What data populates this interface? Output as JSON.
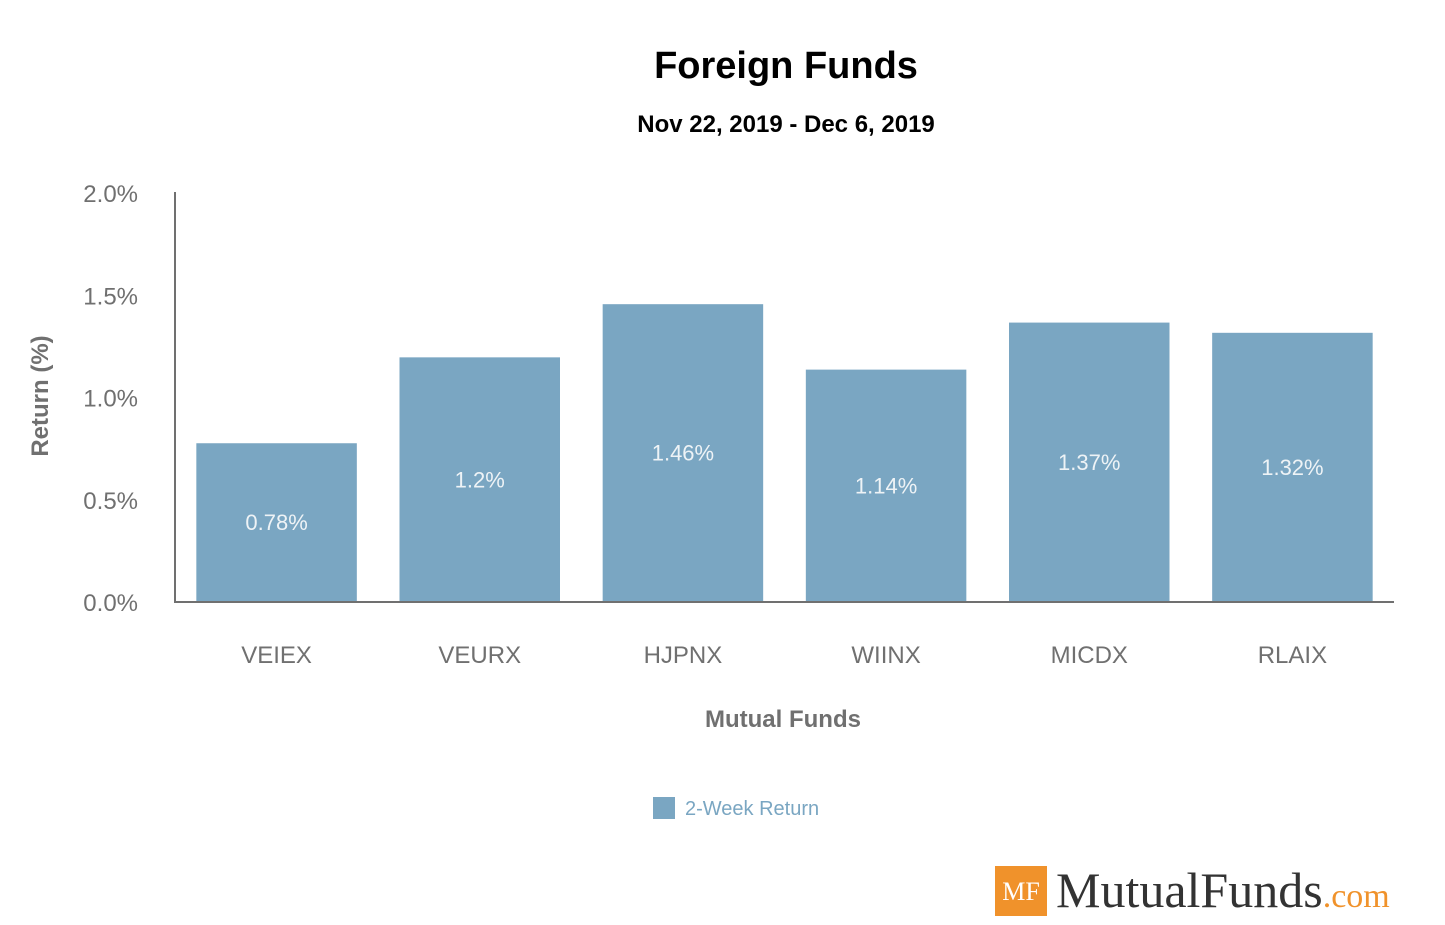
{
  "chart_data": {
    "type": "bar",
    "title": "Foreign Funds",
    "subtitle": "Nov 22, 2019 - Dec 6, 2019",
    "xlabel": "Mutual Funds",
    "ylabel": "Return (%)",
    "categories": [
      "VEIEX",
      "VEURX",
      "HJPNX",
      "WIINX",
      "MICDX",
      "RLAIX"
    ],
    "series": [
      {
        "name": "2-Week Return",
        "values": [
          0.78,
          1.2,
          1.46,
          1.14,
          1.37,
          1.32
        ],
        "data_labels": [
          "0.78%",
          "1.2%",
          "1.46%",
          "1.14%",
          "1.37%",
          "1.32%"
        ],
        "color": "#7aa6c2"
      }
    ],
    "yticks": [
      "0.0%",
      "0.5%",
      "1.0%",
      "1.5%",
      "2.0%"
    ],
    "ylim": [
      0,
      2
    ],
    "grid": false,
    "legend_position": "bottom-center"
  },
  "colors": {
    "bar": "#7aa6c2",
    "bar_label": "#eef3f6",
    "axis_line": "#707070",
    "tick_text": "#707070",
    "legend_text": "#7aa6c2",
    "logo_box": "#f0922b",
    "logo_com": "#f0922b",
    "logo_text": "#333333"
  },
  "logo": {
    "mark": "MF",
    "name": "MutualFunds",
    "suffix": ".com"
  }
}
